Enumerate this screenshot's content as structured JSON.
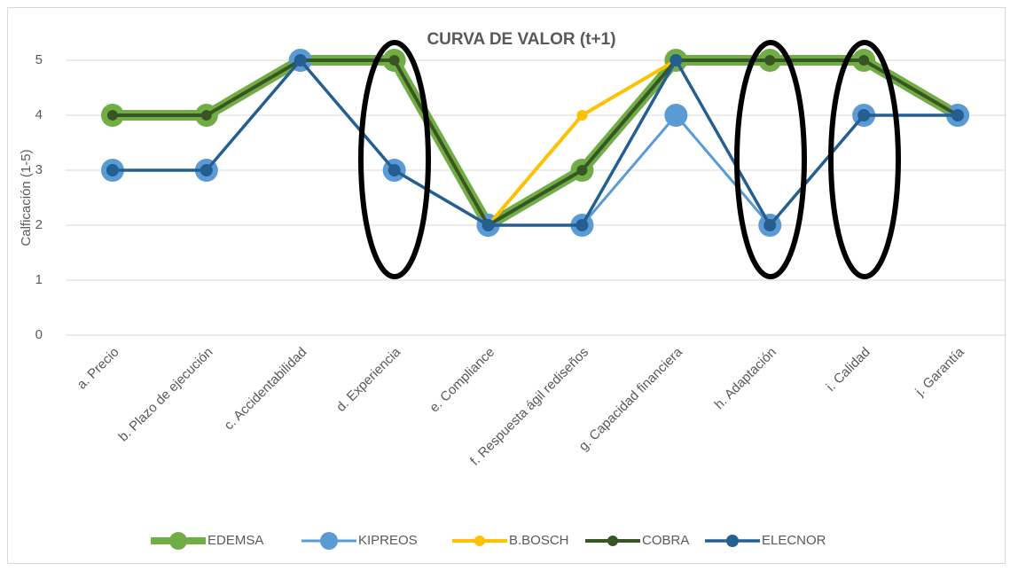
{
  "chart_data": {
    "type": "line",
    "title": "CURVA DE VALOR (t+1)",
    "y_label": "Calficación (1-5)",
    "categories": [
      "a. Precio",
      "b. Plazo de ejecución",
      "c. Accidentabilidad",
      "d. Experiencia",
      "e. Compliance",
      "f. Respuesta ágil rediseños",
      "g. Capacidad financiera",
      "h. Adaptación",
      "i. Calidad",
      "j. Garantía"
    ],
    "series": [
      {
        "name": "EDEMSA",
        "color": "#70ad47",
        "values": [
          4,
          4,
          5,
          5,
          2,
          3,
          5,
          5,
          5,
          4
        ]
      },
      {
        "name": "KIPREOS",
        "color": "#5b9bd5",
        "values": [
          3,
          3,
          5,
          3,
          2,
          2,
          4,
          2,
          4,
          4
        ]
      },
      {
        "name": "B.BOSCH",
        "color": "#ffc000",
        "values": [
          4,
          4,
          5,
          5,
          2,
          4,
          5,
          5,
          5,
          4
        ]
      },
      {
        "name": "COBRA",
        "color": "#375623",
        "values": [
          4,
          4,
          5,
          5,
          2,
          3,
          5,
          5,
          5,
          4
        ]
      },
      {
        "name": "ELECNOR",
        "color": "#255e91",
        "values": [
          3,
          3,
          5,
          3,
          2,
          2,
          5,
          2,
          4,
          4
        ]
      }
    ],
    "ylim": [
      0,
      5
    ],
    "yticks": [
      0,
      1,
      2,
      3,
      4,
      5
    ],
    "grid": true,
    "legend": "bottom"
  }
}
